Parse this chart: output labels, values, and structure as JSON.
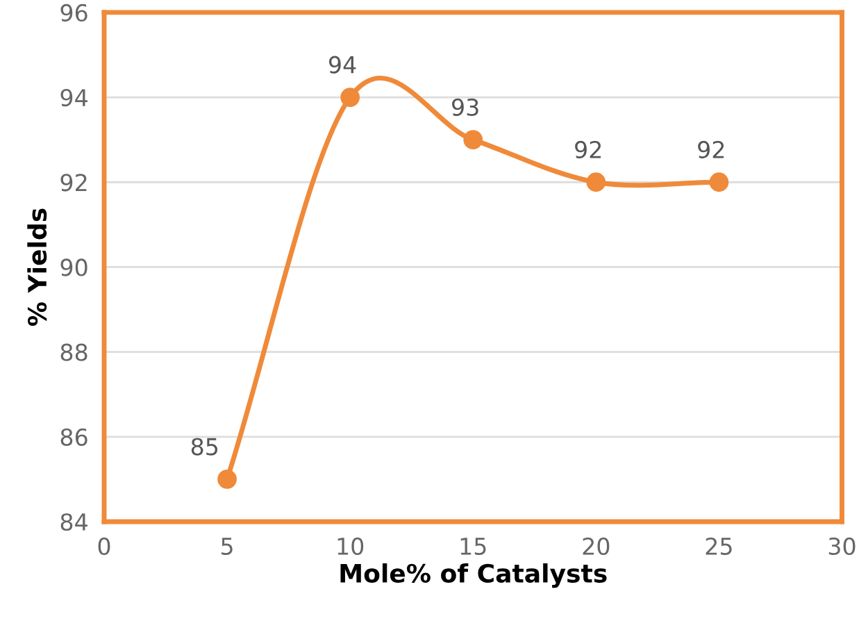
{
  "chart_data": {
    "type": "line",
    "xlabel": "Mole% of Catalysts",
    "ylabel": "% Yields",
    "x": [
      5,
      10,
      15,
      20,
      25
    ],
    "series": [
      {
        "color": "#ef8a3a",
        "values": [
          85,
          94,
          93,
          92,
          92
        ]
      }
    ],
    "xlim": [
      0,
      30
    ],
    "xticks": [
      0,
      5,
      10,
      15,
      20,
      25,
      30
    ],
    "ylim": [
      84,
      96
    ],
    "yticks": [
      84,
      86,
      88,
      90,
      92,
      94,
      96
    ],
    "grid": "y",
    "marker": "circle",
    "line_style": "solid",
    "data_labels": true,
    "legend": false
  }
}
